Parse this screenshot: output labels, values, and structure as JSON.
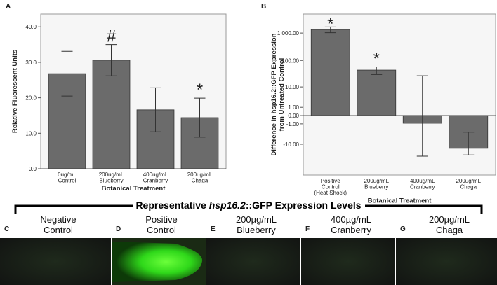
{
  "chart_data": [
    {
      "type": "bar",
      "panel": "A",
      "categories": [
        [
          "0ug/mL",
          "Control"
        ],
        [
          "200ug/mL",
          "Blueberry"
        ],
        [
          "400ug/mL",
          "Cranberry"
        ],
        [
          "200ug/mL",
          "Chaga"
        ]
      ],
      "values": [
        26.8,
        30.6,
        16.6,
        14.4
      ],
      "errors": [
        6.3,
        4.4,
        6.2,
        5.5
      ],
      "bar_annotations": [
        null,
        "#",
        null,
        "*"
      ],
      "color": "#6b6b6b",
      "scale": "linear",
      "ylim": [
        0,
        43.6
      ],
      "yticks": [
        {
          "value": 0,
          "label": "0.0"
        },
        {
          "value": 10,
          "label": "10.0"
        },
        {
          "value": 20,
          "label": "20.0"
        },
        {
          "value": 30,
          "label": "30.0"
        },
        {
          "value": 40,
          "label": "40.0"
        }
      ],
      "x_label": "Botanical Treatment",
      "y_label": [
        "Relative Fluorescent Units"
      ]
    },
    {
      "type": "bar",
      "panel": "B",
      "categories": [
        [
          "Positive",
          "Control",
          "(Heat Shock)"
        ],
        [
          "200ug/mL",
          "Blueberry"
        ],
        [
          "400ug/mL",
          "Cranberry"
        ],
        [
          "200ug/mL",
          "Chaga"
        ]
      ],
      "values": [
        1350,
        44,
        -0.9,
        -14.5
      ],
      "errors": [
        320,
        14,
        28,
        11.5
      ],
      "bar_annotations": [
        "*",
        "*",
        null,
        null
      ],
      "color": "#6b6b6b",
      "scale": "symlog",
      "ylim": [
        -144,
        4900
      ],
      "yticks": [
        {
          "value": -10,
          "label": "-10.00"
        },
        {
          "value": -1,
          "label": "-1.00"
        },
        {
          "value": 0,
          "label": "0.00"
        },
        {
          "value": 1,
          "label": "1.00"
        },
        {
          "value": 10,
          "label": "10.00"
        },
        {
          "value": 100,
          "label": "100.00"
        },
        {
          "value": 1000,
          "label": "1,000.00"
        }
      ],
      "x_label": "Botanical Treatment",
      "y_label": [
        "Difference in hsp16.2::GFP Expression",
        "from Untreated Control"
      ]
    }
  ],
  "image_panel": {
    "title": [
      "Representative ",
      "hsp16.2",
      "::GFP Expression Levels"
    ],
    "panels": [
      {
        "letter": "C",
        "label": [
          "Negative",
          "Control"
        ]
      },
      {
        "letter": "D",
        "label": [
          "Positive",
          "Control"
        ]
      },
      {
        "letter": "E",
        "label": [
          "200µg/mL",
          "Blueberry"
        ]
      },
      {
        "letter": "F",
        "label": [
          "400µg/mL",
          "Cranberry"
        ]
      },
      {
        "letter": "G",
        "label": [
          "200µg/mL",
          "Chaga"
        ]
      }
    ]
  }
}
